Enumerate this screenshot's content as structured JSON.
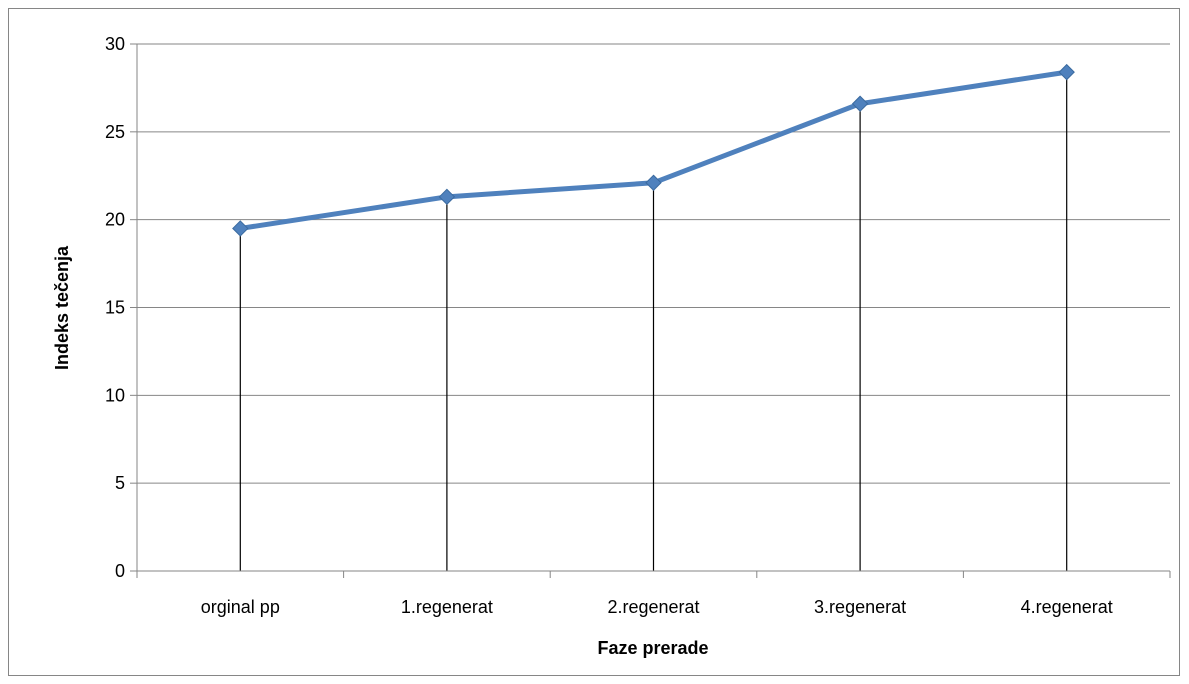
{
  "chart_data": {
    "type": "line",
    "title": "",
    "xlabel": "Faze prerade",
    "ylabel": "Indeks tečenja",
    "categories": [
      "orginal pp",
      "1.regenerat",
      "2.regenerat",
      "3.regenerat",
      "4.regenerat"
    ],
    "series": [
      {
        "values": [
          19.5,
          21.3,
          22.1,
          26.6,
          28.4
        ]
      }
    ],
    "ylim": [
      0,
      30
    ],
    "yticks": [
      0,
      5,
      10,
      15,
      20,
      25,
      30
    ],
    "grid": true,
    "drop_lines": true,
    "marker": "diamond",
    "line_color": "#4F81BD",
    "legend": "none"
  }
}
